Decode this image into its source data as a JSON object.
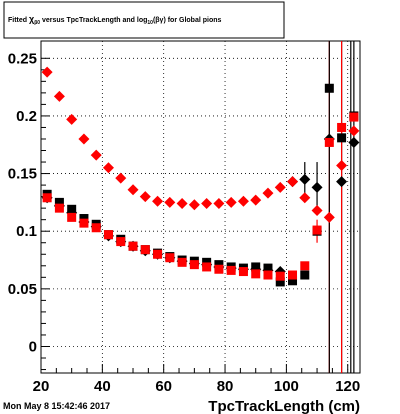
{
  "title": {
    "pre": "Fitted  ",
    "chi": "χ",
    "sub": "β0",
    "mid": "  versus TpcTrackLength and log",
    "sub2": "10",
    "post": "(βγ) for Global pions"
  },
  "timestamp": "Mon May  8 15:42:46 2017",
  "chart_data": {
    "type": "scatter",
    "xlabel": "TpcTrackLength (cm)",
    "ylabel": "",
    "xlim": [
      20,
      124
    ],
    "ylim": [
      -0.023,
      0.265
    ],
    "xticks": [
      20,
      40,
      60,
      80,
      100,
      120
    ],
    "yticks": [
      0,
      0.05,
      0.1,
      0.15,
      0.2,
      0.25
    ],
    "ytick_labels": [
      "0",
      "0.05",
      "0.1",
      "0.15",
      "0.2",
      "0.25"
    ],
    "grid": true,
    "series": [
      {
        "color": "#000000",
        "marker": "diamond",
        "points": [
          [
            22,
            0.129
          ],
          [
            26,
            0.122
          ],
          [
            30,
            0.116
          ],
          [
            34,
            0.108
          ],
          [
            38,
            0.104
          ],
          [
            42,
            0.096
          ],
          [
            46,
            0.091
          ],
          [
            50,
            0.087
          ],
          [
            54,
            0.083
          ],
          [
            58,
            0.08
          ],
          [
            62,
            0.077
          ],
          [
            66,
            0.074
          ],
          [
            70,
            0.072
          ],
          [
            74,
            0.071
          ],
          [
            78,
            0.069
          ],
          [
            82,
            0.068
          ],
          [
            86,
            0.067
          ],
          [
            90,
            0.067
          ],
          [
            94,
            0.066
          ],
          [
            98,
            0.065
          ],
          [
            102,
            0.143
          ],
          [
            106,
            0.145
          ],
          [
            110,
            0.138
          ],
          [
            114,
            0.18
          ],
          [
            118,
            0.143
          ],
          [
            122,
            0.177
          ]
        ]
      },
      {
        "color": "#000000",
        "marker": "square",
        "points": [
          [
            22,
            0.132
          ],
          [
            26,
            0.125
          ],
          [
            30,
            0.119
          ],
          [
            34,
            0.111
          ],
          [
            38,
            0.106
          ],
          [
            42,
            0.097
          ],
          [
            46,
            0.093
          ],
          [
            50,
            0.087
          ],
          [
            54,
            0.084
          ],
          [
            58,
            0.081
          ],
          [
            62,
            0.078
          ],
          [
            66,
            0.075
          ],
          [
            70,
            0.074
          ],
          [
            74,
            0.073
          ],
          [
            78,
            0.071
          ],
          [
            82,
            0.069
          ],
          [
            86,
            0.068
          ],
          [
            90,
            0.069
          ],
          [
            94,
            0.068
          ],
          [
            98,
            0.056
          ],
          [
            102,
            0.057
          ],
          [
            106,
            0.062
          ],
          [
            110,
            0.1
          ],
          [
            114,
            0.224
          ],
          [
            118,
            0.181
          ],
          [
            122,
            0.2
          ]
        ]
      },
      {
        "color": "#ff0000",
        "marker": "diamond",
        "points": [
          [
            22,
            0.238
          ],
          [
            26,
            0.217
          ],
          [
            30,
            0.197
          ],
          [
            34,
            0.18
          ],
          [
            38,
            0.166
          ],
          [
            42,
            0.155
          ],
          [
            46,
            0.146
          ],
          [
            50,
            0.136
          ],
          [
            54,
            0.13
          ],
          [
            58,
            0.126
          ],
          [
            62,
            0.125
          ],
          [
            66,
            0.124
          ],
          [
            70,
            0.123
          ],
          [
            74,
            0.124
          ],
          [
            78,
            0.124
          ],
          [
            82,
            0.125
          ],
          [
            86,
            0.126
          ],
          [
            90,
            0.127
          ],
          [
            94,
            0.133
          ],
          [
            98,
            0.138
          ],
          [
            102,
            0.143
          ],
          [
            106,
            0.129
          ],
          [
            110,
            0.118
          ],
          [
            114,
            0.112
          ],
          [
            118,
            0.157
          ],
          [
            122,
            0.187
          ]
        ]
      },
      {
        "color": "#ff0000",
        "marker": "square",
        "points": [
          [
            22,
            0.129
          ],
          [
            26,
            0.12
          ],
          [
            30,
            0.112
          ],
          [
            34,
            0.107
          ],
          [
            38,
            0.103
          ],
          [
            42,
            0.097
          ],
          [
            46,
            0.091
          ],
          [
            50,
            0.087
          ],
          [
            54,
            0.084
          ],
          [
            58,
            0.08
          ],
          [
            62,
            0.077
          ],
          [
            66,
            0.073
          ],
          [
            70,
            0.071
          ],
          [
            74,
            0.069
          ],
          [
            78,
            0.067
          ],
          [
            82,
            0.066
          ],
          [
            86,
            0.065
          ],
          [
            90,
            0.063
          ],
          [
            94,
            0.062
          ],
          [
            98,
            0.061
          ],
          [
            102,
            0.062
          ],
          [
            106,
            0.07
          ],
          [
            110,
            0.101
          ],
          [
            114,
            0.177
          ],
          [
            118,
            0.19
          ],
          [
            122,
            0.199
          ]
        ]
      }
    ],
    "error_bars": [
      {
        "x": 106,
        "low": 0.131,
        "high": 0.16,
        "color": "#000000"
      },
      {
        "x": 110,
        "low": 0.12,
        "high": 0.16,
        "color": "#000000"
      },
      {
        "x": 110,
        "low": 0.09,
        "high": 0.11,
        "color": "#ff0000"
      },
      {
        "x": 114,
        "low": -0.023,
        "high": 0.265,
        "color": "#ff0000"
      },
      {
        "x": 114,
        "low": -0.023,
        "high": 0.265,
        "color": "#000000"
      },
      {
        "x": 118,
        "low": -0.023,
        "high": 0.265,
        "color": "#000000"
      },
      {
        "x": 118,
        "low": -0.023,
        "high": 0.265,
        "color": "#ff0000"
      },
      {
        "x": 122,
        "low": -0.023,
        "high": 0.265,
        "color": "#000000"
      },
      {
        "x": 121,
        "low": -0.023,
        "high": 0.265,
        "color": "#000000"
      }
    ]
  }
}
